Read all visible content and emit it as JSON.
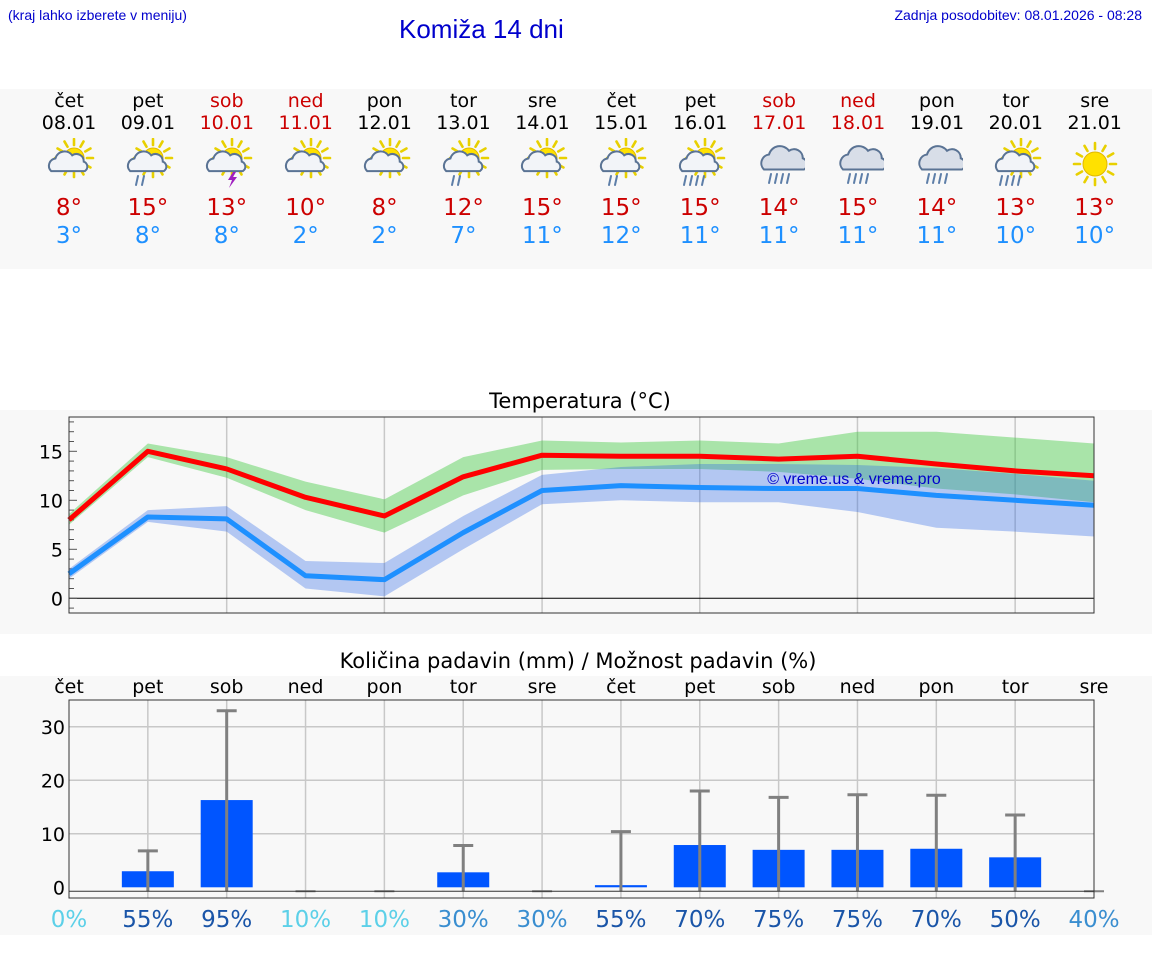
{
  "header": {
    "location_hint": "(kraj lahko izberete v meniju)",
    "title": "Komiža 14 dni",
    "updated": "Zadnja posodobitev: 08.01.2026 - 08:28"
  },
  "colors": {
    "max": "#cc0000",
    "min": "#1e90ff",
    "bar": "#0055ff",
    "weekend": "#cc0000",
    "link": "#0000cc"
  },
  "days": [
    {
      "name": "čet",
      "date": "08.01",
      "weekend": false,
      "icon": "sun-cloud-icon",
      "max": "8°",
      "min": "3°"
    },
    {
      "name": "pet",
      "date": "09.01",
      "weekend": false,
      "icon": "sun-cloud-rain-icon",
      "max": "15°",
      "min": "8°"
    },
    {
      "name": "sob",
      "date": "10.01",
      "weekend": true,
      "icon": "sun-cloud-storm-icon",
      "max": "13°",
      "min": "8°"
    },
    {
      "name": "ned",
      "date": "11.01",
      "weekend": true,
      "icon": "sun-cloud-icon",
      "max": "10°",
      "min": "2°"
    },
    {
      "name": "pon",
      "date": "12.01",
      "weekend": false,
      "icon": "sun-cloud-icon",
      "max": "8°",
      "min": "2°"
    },
    {
      "name": "tor",
      "date": "13.01",
      "weekend": false,
      "icon": "sun-cloud-rain-icon",
      "max": "12°",
      "min": "7°"
    },
    {
      "name": "sre",
      "date": "14.01",
      "weekend": false,
      "icon": "sun-cloud-icon",
      "max": "15°",
      "min": "11°"
    },
    {
      "name": "čet",
      "date": "15.01",
      "weekend": false,
      "icon": "sun-cloud-rain-icon",
      "max": "15°",
      "min": "12°"
    },
    {
      "name": "pet",
      "date": "16.01",
      "weekend": false,
      "icon": "sun-cloud-heavy-rain-icon",
      "max": "15°",
      "min": "11°"
    },
    {
      "name": "sob",
      "date": "17.01",
      "weekend": true,
      "icon": "cloud-heavy-rain-icon",
      "max": "14°",
      "min": "11°"
    },
    {
      "name": "ned",
      "date": "18.01",
      "weekend": true,
      "icon": "cloud-heavy-rain-icon",
      "max": "15°",
      "min": "11°"
    },
    {
      "name": "pon",
      "date": "19.01",
      "weekend": false,
      "icon": "cloud-heavy-rain-icon",
      "max": "14°",
      "min": "11°"
    },
    {
      "name": "tor",
      "date": "20.01",
      "weekend": false,
      "icon": "sun-cloud-heavy-rain-icon",
      "max": "13°",
      "min": "10°"
    },
    {
      "name": "sre",
      "date": "21.01",
      "weekend": false,
      "icon": "sun-icon",
      "max": "13°",
      "min": "10°"
    }
  ],
  "chart_data": [
    {
      "type": "line",
      "title": "Temperatura (°C)",
      "watermark": "© vreme.us & vreme.pro",
      "ylim": [
        -1.5,
        18.5
      ],
      "yticks": [
        0,
        5,
        10,
        15
      ],
      "x": [
        0,
        1,
        2,
        3,
        4,
        5,
        6,
        7,
        8,
        9,
        10,
        11,
        12,
        13
      ],
      "series": [
        {
          "name": "max",
          "color": "#ff0000",
          "values": [
            8.0,
            15.0,
            13.2,
            10.3,
            8.4,
            12.4,
            14.6,
            14.5,
            14.5,
            14.2,
            14.5,
            13.7,
            13.0,
            12.5
          ],
          "band_low": [
            7.5,
            14.4,
            12.3,
            9.0,
            6.7,
            10.5,
            13.1,
            13.2,
            13.2,
            12.9,
            12.2,
            11.2,
            10.6,
            9.8
          ],
          "band_high": [
            8.6,
            15.8,
            14.4,
            11.9,
            10.1,
            14.4,
            16.1,
            15.9,
            16.1,
            15.8,
            17.0,
            17.0,
            16.4,
            15.8
          ]
        },
        {
          "name": "min",
          "color": "#1e90ff",
          "values": [
            2.5,
            8.3,
            8.1,
            2.3,
            1.9,
            6.7,
            11.0,
            11.5,
            11.3,
            11.2,
            11.2,
            10.5,
            10.0,
            9.5
          ],
          "band_low": [
            2.0,
            7.8,
            6.8,
            1.0,
            0.2,
            5.0,
            9.6,
            10.0,
            9.8,
            9.8,
            8.8,
            7.2,
            6.8,
            6.3
          ],
          "band_high": [
            3.0,
            9.0,
            9.4,
            3.8,
            3.6,
            8.4,
            12.6,
            13.4,
            13.7,
            13.7,
            13.6,
            13.3,
            12.7,
            12.0
          ]
        }
      ]
    },
    {
      "type": "bar",
      "title": "Količina padavin (mm) / Možnost padavin (%)",
      "categories": [
        "čet",
        "pet",
        "sob",
        "ned",
        "pon",
        "tor",
        "sre",
        "čet",
        "pet",
        "sob",
        "ned",
        "pon",
        "tor",
        "sre"
      ],
      "ylim": [
        -2,
        35
      ],
      "yticks": [
        0,
        10,
        20,
        30
      ],
      "values": [
        0,
        3.0,
        16.3,
        0,
        0,
        2.8,
        0,
        0.4,
        7.9,
        7.0,
        7.0,
        7.2,
        5.6,
        0
      ],
      "error_high": [
        0,
        6.8,
        33.0,
        0,
        0,
        7.8,
        0,
        10.4,
        18.0,
        16.8,
        17.3,
        17.2,
        13.5,
        0
      ],
      "probability": [
        "0%",
        "55%",
        "95%",
        "10%",
        "10%",
        "30%",
        "30%",
        "55%",
        "70%",
        "75%",
        "75%",
        "70%",
        "50%",
        "40%"
      ],
      "probability_values": [
        0,
        55,
        95,
        10,
        10,
        30,
        30,
        55,
        70,
        75,
        75,
        70,
        50,
        40
      ]
    }
  ]
}
